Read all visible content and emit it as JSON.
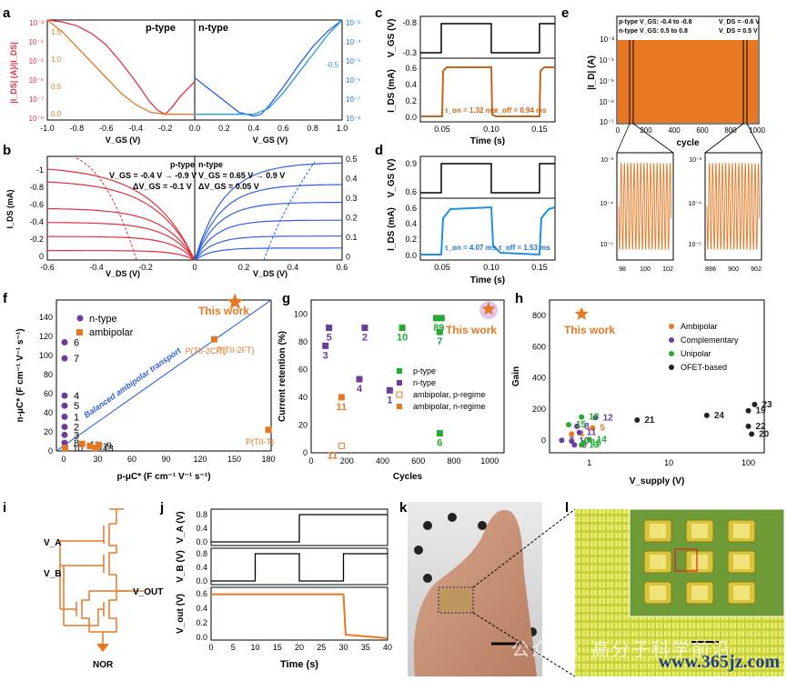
{
  "panel_letters": [
    "a",
    "b",
    "c",
    "d",
    "e",
    "f",
    "g",
    "h",
    "i",
    "j",
    "k",
    "l"
  ],
  "colors": {
    "ptype": "#e03040",
    "ntype": "#2f5fe0",
    "orange": "#e87722",
    "purple": "#6a3d9a",
    "green": "#22aa33",
    "cyan": "#1ea0e0",
    "black": "#222222"
  },
  "chart_data": [
    {
      "panel": "a",
      "type": "line",
      "left_label": "p-type",
      "right_label": "n-type",
      "ylabel_left": "|I_DS| (A)/|I_DS|",
      "ylabel_right": "√|I_DS|",
      "xlabel": "V_GS (V)",
      "p_ticks": [
        "-1.0",
        "-0.8",
        "-0.6",
        "-0.4",
        "-0.2"
      ],
      "n_ticks": [
        "0.0",
        "0.2",
        "0.4",
        "0.6",
        "0.8",
        "1.0"
      ],
      "y_ticks_left": [
        "10⁻³",
        "10⁻⁴",
        "10⁻⁵",
        "10⁻⁶",
        "10⁻⁷",
        "10⁻⁸"
      ],
      "y_ticks_left2": [
        "1.5",
        "1.0",
        "0.5",
        "0.0"
      ],
      "y_ticks_right": [
        "10⁻³",
        "10⁻⁴",
        "10⁻⁵",
        "10⁻⁶",
        "10⁻⁷",
        "10⁻⁸"
      ],
      "y_ticks_right2": [
        "-0.5"
      ],
      "series": [
        {
          "x": [
            -1.0,
            -0.9,
            -0.8,
            -0.7,
            -0.6,
            -0.5,
            -0.4,
            -0.3,
            -0.25,
            -0.2,
            -0.15,
            -0.1,
            0.0
          ],
          "y": [
            -3.0,
            -3.1,
            -3.3,
            -3.7,
            -4.3,
            -5.2,
            -6.2,
            -7.3,
            -7.7,
            -7.9,
            -7.5,
            -7.0,
            -6.2
          ],
          "color": "#e03040"
        },
        {
          "x": [
            -1.0,
            -0.9,
            -0.8,
            -0.7,
            -0.6,
            -0.5,
            -0.4,
            -0.3,
            -0.2,
            -0.1,
            0.0
          ],
          "y": [
            -3.0,
            -3.6,
            -4.4,
            -5.2,
            -6.0,
            -6.8,
            -7.4,
            -7.8,
            -7.9,
            -7.9,
            -7.9
          ],
          "color": "#e87722"
        },
        {
          "x": [
            0.0,
            0.1,
            0.2,
            0.3,
            0.4,
            0.45,
            0.5,
            0.6,
            0.7,
            0.8,
            0.9,
            1.0
          ],
          "y": [
            -6.0,
            -6.6,
            -7.2,
            -7.8,
            -8.0,
            -7.9,
            -7.5,
            -6.5,
            -5.4,
            -4.4,
            -3.6,
            -3.0
          ],
          "color": "#2f5fe0"
        },
        {
          "x": [
            0.0,
            0.2,
            0.4,
            0.5,
            0.6,
            0.7,
            0.8,
            0.9,
            1.0
          ],
          "y": [
            -7.9,
            -7.9,
            -7.9,
            -7.6,
            -6.8,
            -5.8,
            -4.8,
            -3.8,
            -3.0
          ],
          "color": "#1ea0e0"
        }
      ]
    },
    {
      "panel": "b",
      "type": "line",
      "legend_p": [
        "p-type",
        "V_GS = -0.4 V → -0.9 V",
        "ΔV_GS = -0.1 V"
      ],
      "legend_n": [
        "n-type",
        "V_GS = 0.65 V → 0.9 V",
        "ΔV_GS = 0.05 V"
      ],
      "ylabel": "I_DS (mA)",
      "xlabel": "V_DS (V)",
      "x_ticks": [
        "-0.6",
        "-0.4",
        "-0.2",
        "0",
        "0.2",
        "0.4",
        "0.6"
      ],
      "y_ticks_left": [
        "-1",
        "-0.8",
        "-0.6",
        "-0.4",
        "-0.2",
        "0"
      ],
      "y_ticks_right": [
        "0.5",
        "0.4",
        "0.3",
        "0.2",
        "0.1",
        "0"
      ],
      "p_sat": [
        1.0,
        0.85,
        0.55,
        0.4,
        0.25,
        0.1
      ],
      "n_sat": [
        0.49,
        0.38,
        0.29,
        0.2,
        0.12,
        0.06
      ]
    },
    {
      "panel": "c",
      "type": "line",
      "ylabel_top": "V_GS (V)",
      "ylabel_bottom": "I_DS (mA)",
      "xlabel": "Time (s)",
      "y_ticks_top": [
        "-0.8",
        "-0.3"
      ],
      "y_ticks_bottom": [
        "0.6",
        "0.4",
        "0.2",
        "0.0"
      ],
      "x_ticks": [
        "0.05",
        "0.10",
        "0.15"
      ],
      "annotation_on": "τ_on = 1.32 ms",
      "annotation_off": "τ_off = 0.94 ms",
      "color": "#c8641a"
    },
    {
      "panel": "d",
      "type": "line",
      "ylabel_top": "V_GS (V)",
      "ylabel_bottom": "I_DS (mA)",
      "xlabel": "Time (s)",
      "y_ticks_top": [
        "0.9",
        "0.6"
      ],
      "y_ticks_bottom": [
        "0.6",
        "0.4",
        "0.2",
        "0.0"
      ],
      "x_ticks": [
        "0.05",
        "0.10",
        "0.15"
      ],
      "annotation_on": "τ_on = 4.07 ms",
      "annotation_off": "τ_off = 1.53 ms",
      "color": "#1e90e0"
    },
    {
      "panel": "e",
      "type": "line",
      "legend": [
        "p-type V_GS: -0.4 to -0.8",
        "n-type V_GS: 0.5 to 0.8",
        "V_DS = -0.6 V",
        "V_DS = 0.5 V"
      ],
      "ylabel": "|I_D| (A)",
      "xlabel": "cycle",
      "y_ticks": [
        "10⁻³",
        "10⁻⁴",
        "10⁻⁵",
        "10⁻⁶",
        "10⁻⁷"
      ],
      "x_ticks": [
        "0",
        "200",
        "400",
        "600",
        "800",
        "1000"
      ],
      "inset_left_ticks": [
        "98",
        "100",
        "102"
      ],
      "inset_right_ticks": [
        "898",
        "900",
        "902"
      ],
      "inset_y_ticks": [
        "10⁻³",
        "10⁻⁴",
        "10⁻⁵"
      ]
    },
    {
      "panel": "f",
      "type": "scatter",
      "ylabel": "n-μC* (F cm⁻¹ V⁻¹ s⁻¹)",
      "xlabel": "p-μC* (F cm⁻¹ V⁻¹ s⁻¹)",
      "x_ticks": [
        "0",
        "30",
        "60",
        "90",
        "120",
        "150",
        "180"
      ],
      "y_ticks": [
        "0",
        "20",
        "40",
        "60",
        "80",
        "100",
        "120",
        "140"
      ],
      "xlim": [
        0,
        190
      ],
      "ylim": [
        0,
        150
      ],
      "legend": [
        "n-type",
        "ambipolar"
      ],
      "diag_label": "Balanced ambipolar transport",
      "this_work": "This work",
      "star": {
        "x": 158,
        "y": 148
      },
      "n_type": [
        {
          "x": 0,
          "y": 108,
          "label": "6"
        },
        {
          "x": 0,
          "y": 92,
          "label": "7"
        },
        {
          "x": 0,
          "y": 55,
          "label": "4"
        },
        {
          "x": 0,
          "y": 45,
          "label": "5"
        },
        {
          "x": 0,
          "y": 34,
          "label": "1"
        },
        {
          "x": 0,
          "y": 24,
          "label": "2"
        },
        {
          "x": 0,
          "y": 16,
          "label": "3"
        },
        {
          "x": 0,
          "y": 8,
          "label": "8"
        }
      ],
      "ambipolar": [
        {
          "x": 132,
          "y": 111,
          "label": "P(TII-2CIT)"
        },
        {
          "x": 180,
          "y": 21,
          "label": "P(TII-T)"
        },
        {
          "x": 0,
          "y": 3,
          "label": "10"
        },
        {
          "x": 15,
          "y": 7,
          "label": "11"
        },
        {
          "x": 22,
          "y": 5,
          "label": "12"
        },
        {
          "x": 30,
          "y": 6,
          "label": "9"
        },
        {
          "x": 27,
          "y": 3,
          "label": "13"
        }
      ],
      "p2ft_label": "P(TII-2FT)"
    },
    {
      "panel": "g",
      "type": "scatter",
      "ylabel": "Current retention (%)",
      "xlabel": "Cycles",
      "x_ticks": [
        "0",
        "200",
        "400",
        "600",
        "800",
        "1000"
      ],
      "y_ticks": [
        "0",
        "20",
        "40",
        "60",
        "80",
        "100"
      ],
      "xlim": [
        0,
        1080
      ],
      "ylim": [
        0,
        110
      ],
      "legend": [
        "p-type",
        "n-type",
        "ambipolar, p-regime",
        "ambipolar, n-regime"
      ],
      "this_work": "This work",
      "points": [
        {
          "x": 80,
          "y": 77,
          "label": "3",
          "cls": "n"
        },
        {
          "x": 100,
          "y": 90,
          "label": "5",
          "cls": "n"
        },
        {
          "x": 300,
          "y": 90,
          "label": "2",
          "cls": "n"
        },
        {
          "x": 270,
          "y": 53,
          "label": "4",
          "cls": "n"
        },
        {
          "x": 440,
          "y": 45,
          "label": "1",
          "cls": "n"
        },
        {
          "x": 510,
          "y": 90,
          "label": "10",
          "cls": "p"
        },
        {
          "x": 700,
          "y": 97,
          "label": "8",
          "cls": "p"
        },
        {
          "x": 730,
          "y": 97,
          "label": "9",
          "cls": "p"
        },
        {
          "x": 720,
          "y": 87,
          "label": "7",
          "cls": "p"
        },
        {
          "x": 720,
          "y": 14,
          "label": "6",
          "cls": "p"
        },
        {
          "x": 170,
          "y": 40,
          "label": "11",
          "cls": "an"
        },
        {
          "x": 170,
          "y": 5,
          "label": "11",
          "cls": "ap"
        }
      ]
    },
    {
      "panel": "h",
      "type": "scatter",
      "ylabel": "Gain",
      "xlabel": "V_supply (V)",
      "x_ticks": [
        "1",
        "10",
        "100"
      ],
      "y_ticks": [
        "0",
        "200",
        "400",
        "600",
        "800"
      ],
      "ylim": [
        -80,
        900
      ],
      "legend": [
        "Ambipolar",
        "Complementary",
        "Unipolar",
        "OFET-based"
      ],
      "this_work": "This work",
      "star": {
        "x": 0.8,
        "y": 810
      },
      "points": [
        {
          "x": 0.6,
          "y": 40,
          "label": "4",
          "cls": "amb"
        },
        {
          "x": 1.1,
          "y": 80,
          "label": "5",
          "cls": "amb"
        },
        {
          "x": 0.7,
          "y": 90,
          "label": "8",
          "cls": "com"
        },
        {
          "x": 1.2,
          "y": 145,
          "label": "12",
          "cls": "com"
        },
        {
          "x": 0.75,
          "y": 50,
          "label": "11",
          "cls": "com"
        },
        {
          "x": 0.45,
          "y": 0,
          "label": "7",
          "cls": "com"
        },
        {
          "x": 0.6,
          "y": -5,
          "label": "10",
          "cls": "com"
        },
        {
          "x": 0.65,
          "y": -30,
          "label": "9",
          "cls": "com"
        },
        {
          "x": 0.55,
          "y": 100,
          "label": "15",
          "cls": "uni"
        },
        {
          "x": 0.8,
          "y": 150,
          "label": "18",
          "cls": "uni"
        },
        {
          "x": 0.85,
          "y": -15,
          "label": "16",
          "cls": "uni"
        },
        {
          "x": 1.0,
          "y": 5,
          "label": "14",
          "cls": "uni"
        },
        {
          "x": 0.8,
          "y": -30,
          "label": "13",
          "cls": "uni"
        },
        {
          "x": 4,
          "y": 130,
          "label": "21",
          "cls": "ofet"
        },
        {
          "x": 30,
          "y": 160,
          "label": "24",
          "cls": "ofet"
        },
        {
          "x": 100,
          "y": 190,
          "label": "19",
          "cls": "ofet"
        },
        {
          "x": 120,
          "y": 230,
          "label": "23",
          "cls": "ofet"
        },
        {
          "x": 100,
          "y": 90,
          "label": "22",
          "cls": "ofet"
        },
        {
          "x": 110,
          "y": 40,
          "label": "20",
          "cls": "ofet"
        }
      ]
    },
    {
      "panel": "j",
      "type": "line",
      "ylabels": [
        "V_A (V)",
        "V_B (V)",
        "V_out (V)"
      ],
      "xlabel": "Time (s)",
      "x_ticks": [
        "0",
        "5",
        "10",
        "15",
        "20",
        "25",
        "30",
        "35",
        "40"
      ],
      "y_ticks_a": [
        "0.8",
        "0.4",
        "0.0"
      ],
      "y_ticks_b": [
        "0.8",
        "0.4",
        "0.0"
      ],
      "y_ticks_out": [
        "0.6",
        "0.4",
        "0.2",
        "0.0"
      ],
      "VA": [
        {
          "t": 0,
          "v": 0
        },
        {
          "t": 20,
          "v": 0
        },
        {
          "t": 20,
          "v": 0.8
        },
        {
          "t": 40,
          "v": 0.8
        }
      ],
      "VB": [
        {
          "t": 0,
          "v": 0
        },
        {
          "t": 10,
          "v": 0
        },
        {
          "t": 10,
          "v": 0.8
        },
        {
          "t": 20,
          "v": 0.8
        },
        {
          "t": 20,
          "v": 0
        },
        {
          "t": 30,
          "v": 0
        },
        {
          "t": 30,
          "v": 0.8
        },
        {
          "t": 40,
          "v": 0.8
        }
      ],
      "Vout": [
        {
          "t": 0,
          "v": 0.6
        },
        {
          "t": 30,
          "v": 0.6
        },
        {
          "t": 30.5,
          "v": 0.05
        },
        {
          "t": 40,
          "v": 0.0
        }
      ]
    }
  ],
  "circuit": {
    "label_a": "V_A",
    "label_b": "V_B",
    "label_out": "V_OUT",
    "label_gate": "NOR"
  },
  "watermark": "公众号：高分子科学前沿",
  "url": "www.365jz.com"
}
